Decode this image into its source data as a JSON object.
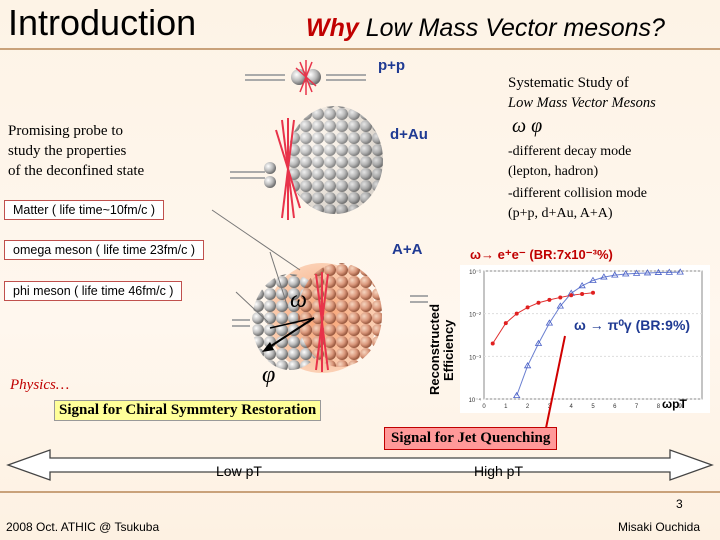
{
  "header": {
    "title": "Introduction",
    "subtitle_why": "Why",
    "subtitle_rest": " Low Mass Vector mesons?"
  },
  "systems": {
    "pp": "p+p",
    "dau": "d+Au",
    "aa": "A+A"
  },
  "systematic": {
    "line1": "Systematic Study of",
    "line2": "Low Mass Vector Mesons",
    "symbols": "ω φ",
    "bullet1a": "-different decay mode",
    "bullet1b": "(lepton, hadron)",
    "bullet2a": "-different collision mode",
    "bullet2b": "(p+p, d+Au, A+A)"
  },
  "probe": {
    "line1": "Promising probe to",
    "line2": "study the properties",
    "line3": "of the deconfined state"
  },
  "boxes": {
    "matter": "Matter ( life time~10fm/c )",
    "omega": "omega meson ( life time 23fm/c )",
    "phi": "phi meson ( life time 46fm/c )"
  },
  "glyphs": {
    "omega": "ω",
    "phi": "φ"
  },
  "plot": {
    "ee_label_sym": "ω→ e⁺e⁻",
    "ee_label_br": "(BR:7x10⁻³%)",
    "pig_label": "ω → π⁰γ (BR:9%)",
    "ylabel1": "Reconstructed",
    "ylabel2": "Efficiency",
    "xlabel": "ωpT",
    "yticks": [
      "10⁻¹",
      "10⁻²",
      "10⁻³",
      "10⁻⁴"
    ],
    "xticks": [
      "0",
      "1",
      "2",
      "3",
      "4",
      "5",
      "6",
      "7",
      "8",
      "9"
    ],
    "series_red": [
      [
        0.4,
        0.002
      ],
      [
        1.0,
        0.006
      ],
      [
        1.5,
        0.01
      ],
      [
        2.0,
        0.014
      ],
      [
        2.5,
        0.018
      ],
      [
        3.0,
        0.021
      ],
      [
        3.5,
        0.024
      ],
      [
        4.0,
        0.027
      ],
      [
        4.5,
        0.029
      ],
      [
        5.0,
        0.031
      ]
    ],
    "series_blue": [
      [
        1.5,
        0.00012
      ],
      [
        2.0,
        0.0006
      ],
      [
        2.5,
        0.002
      ],
      [
        3.0,
        0.006
      ],
      [
        3.5,
        0.015
      ],
      [
        4.0,
        0.03
      ],
      [
        4.5,
        0.045
      ],
      [
        5.0,
        0.06
      ],
      [
        5.5,
        0.072
      ],
      [
        6.0,
        0.08
      ],
      [
        6.5,
        0.085
      ],
      [
        7.0,
        0.088
      ],
      [
        7.5,
        0.09
      ],
      [
        8.0,
        0.092
      ],
      [
        8.5,
        0.093
      ],
      [
        9.0,
        0.094
      ]
    ]
  },
  "physics": "Physics…",
  "chiral": "Signal for Chiral Symmtery Restoration",
  "jet": "Signal for Jet Quenching",
  "arrow": {
    "low": "Low pT",
    "high": "High pT"
  },
  "footer": {
    "page": "3",
    "left": "2008 Oct. ATHIC @ Tsukuba",
    "right": "Misaki Ouchida"
  },
  "colors": {
    "accent_red": "#c00000",
    "blue": "#1f3a93",
    "box_border": "#c0504d"
  }
}
